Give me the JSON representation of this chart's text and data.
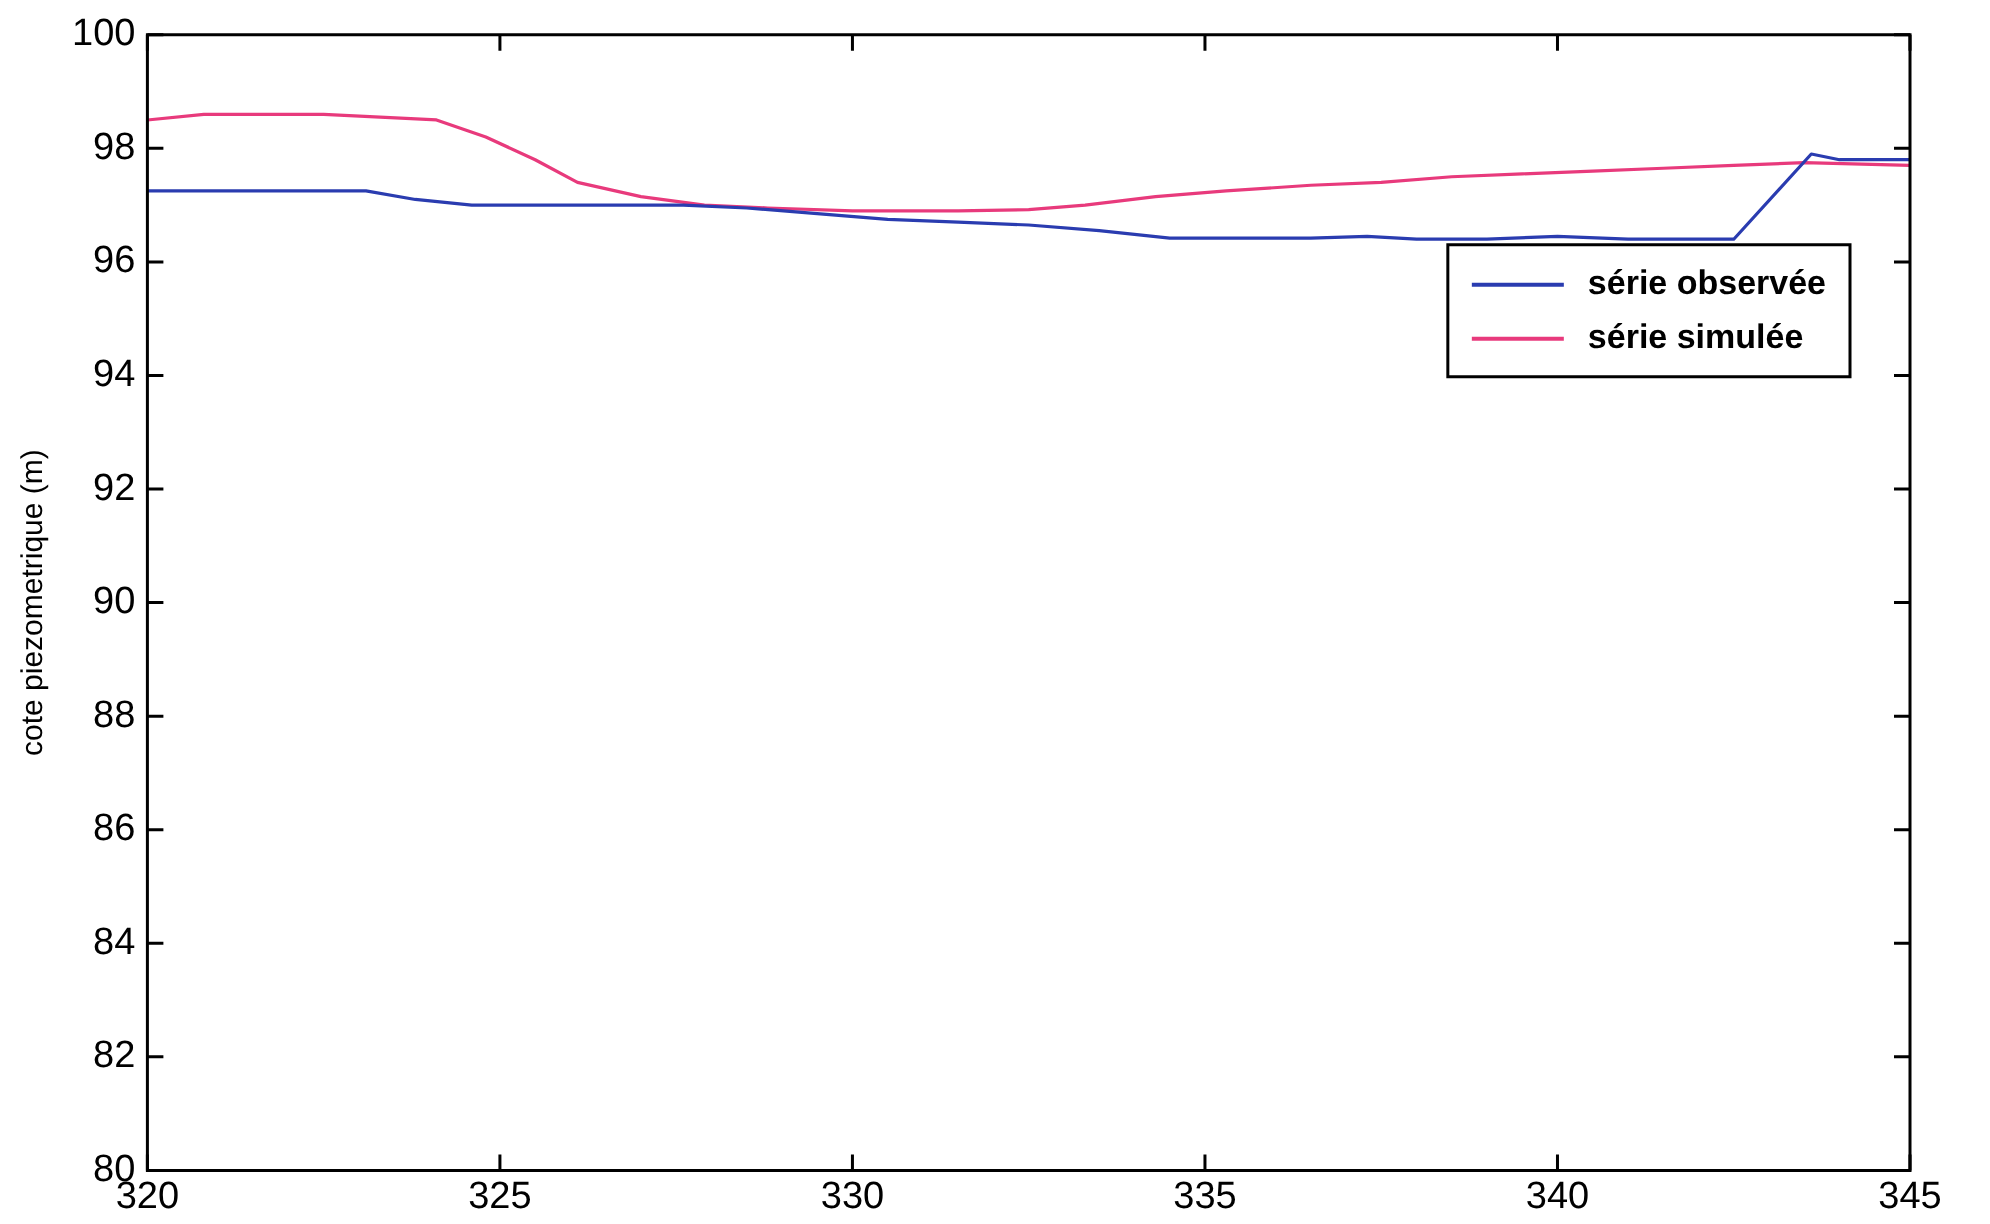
{
  "chart_data": {
    "type": "line",
    "ylabel": "cote piezometrique (m)",
    "xlim": [
      320,
      345
    ],
    "xticks": [
      320,
      325,
      330,
      335,
      340,
      345
    ],
    "ylim": [
      80,
      100
    ],
    "yticks": [
      80,
      82,
      84,
      86,
      88,
      90,
      92,
      94,
      96,
      98,
      100
    ],
    "grid": false,
    "legend": "top right",
    "marker": "none",
    "line_style": "solid",
    "series": [
      {
        "name": "série observée",
        "color": "#2a3cb0",
        "x": [
          320,
          323.1,
          323.8,
          324.6,
          327.6,
          328.5,
          329.5,
          330.5,
          331.5,
          332.5,
          333.5,
          334.5,
          336.5,
          337.3,
          338,
          339,
          340,
          341,
          342.5,
          343.6,
          344,
          345
        ],
        "values": [
          97.25,
          97.25,
          97.1,
          97.0,
          97.0,
          96.95,
          96.85,
          96.75,
          96.7,
          96.65,
          96.55,
          96.42,
          96.42,
          96.45,
          96.4,
          96.4,
          96.45,
          96.4,
          96.4,
          97.9,
          97.8,
          97.8
        ]
      },
      {
        "name": "série simulée",
        "color": "#e83a7c",
        "x": [
          320,
          320.8,
          322.5,
          324.1,
          324.8,
          325.5,
          326.1,
          327,
          327.9,
          328.8,
          330,
          331.5,
          332.5,
          333.3,
          334.3,
          335.3,
          336.5,
          337.5,
          338.5,
          339.5,
          340.5,
          341.5,
          342.5,
          343.5,
          345
        ],
        "values": [
          98.5,
          98.6,
          98.6,
          98.5,
          98.2,
          97.8,
          97.4,
          97.15,
          97.0,
          96.95,
          96.9,
          96.9,
          96.92,
          97.0,
          97.15,
          97.25,
          97.35,
          97.4,
          97.5,
          97.55,
          97.6,
          97.65,
          97.7,
          97.75,
          97.7
        ]
      }
    ]
  }
}
